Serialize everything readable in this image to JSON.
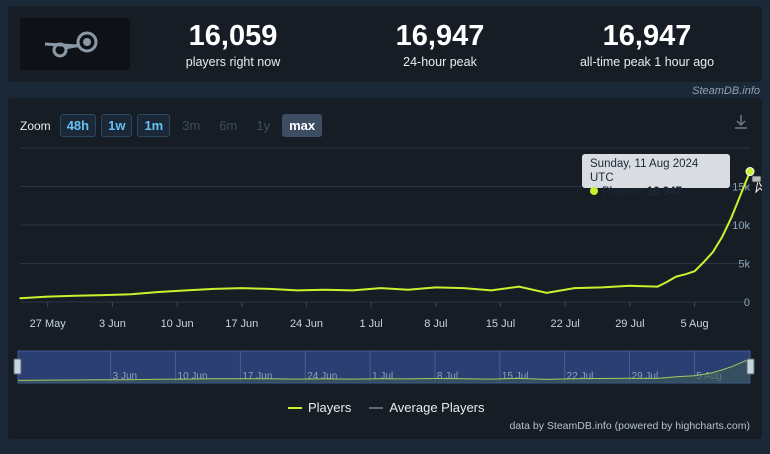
{
  "stats": [
    {
      "value": "16,059",
      "label": "players right now"
    },
    {
      "value": "16,947",
      "label": "24-hour peak"
    },
    {
      "value": "16,947",
      "label": "all-time peak 1 hour ago"
    }
  ],
  "credit_top": "SteamDB.info",
  "zoom": {
    "label": "Zoom",
    "buttons": [
      {
        "label": "48h",
        "state": "enabled"
      },
      {
        "label": "1w",
        "state": "enabled"
      },
      {
        "label": "1m",
        "state": "enabled"
      },
      {
        "label": "3m",
        "state": "disabled"
      },
      {
        "label": "6m",
        "state": "disabled"
      },
      {
        "label": "1y",
        "state": "disabled"
      },
      {
        "label": "max",
        "state": "active"
      }
    ]
  },
  "tooltip": {
    "date": "Sunday, 11 Aug 2024 UTC",
    "series": "Players:",
    "value": "16 947"
  },
  "legend": {
    "players": "Players",
    "average": "Average Players"
  },
  "credit_bottom": "data by SteamDB.info (powered by highcharts.com)",
  "colors": {
    "players_line": "#c9f12d",
    "average_line": "#5a6a78",
    "navigator_fill": "#2c3f73",
    "background": "#171d25"
  },
  "chart_data": {
    "type": "line",
    "title": "",
    "xlabel": "",
    "ylabel": "",
    "x_tick_labels": [
      "27 May",
      "3 Jun",
      "10 Jun",
      "17 Jun",
      "24 Jun",
      "1 Jul",
      "8 Jul",
      "15 Jul",
      "22 Jul",
      "29 Jul",
      "5 Aug"
    ],
    "y_tick_labels": [
      "0",
      "5k",
      "10k",
      "15k"
    ],
    "ylim": [
      0,
      20000
    ],
    "series": [
      {
        "name": "Players",
        "x": [
          "2024-05-24",
          "2024-05-27",
          "2024-05-30",
          "2024-06-02",
          "2024-06-05",
          "2024-06-08",
          "2024-06-11",
          "2024-06-14",
          "2024-06-17",
          "2024-06-20",
          "2024-06-23",
          "2024-06-26",
          "2024-06-29",
          "2024-07-02",
          "2024-07-05",
          "2024-07-08",
          "2024-07-11",
          "2024-07-14",
          "2024-07-17",
          "2024-07-20",
          "2024-07-23",
          "2024-07-26",
          "2024-07-29",
          "2024-08-01",
          "2024-08-02",
          "2024-08-03",
          "2024-08-04",
          "2024-08-05",
          "2024-08-06",
          "2024-08-07",
          "2024-08-08",
          "2024-08-09",
          "2024-08-10",
          "2024-08-11"
        ],
        "values": [
          500,
          700,
          800,
          900,
          1000,
          1300,
          1500,
          1700,
          1800,
          1700,
          1500,
          1600,
          1500,
          1800,
          1600,
          1900,
          1800,
          1500,
          2000,
          1200,
          1800,
          1900,
          2100,
          2000,
          2600,
          3300,
          3600,
          4000,
          5200,
          6500,
          8500,
          11000,
          14000,
          16947
        ]
      }
    ],
    "grid": true,
    "legend_position": "bottom-center"
  }
}
